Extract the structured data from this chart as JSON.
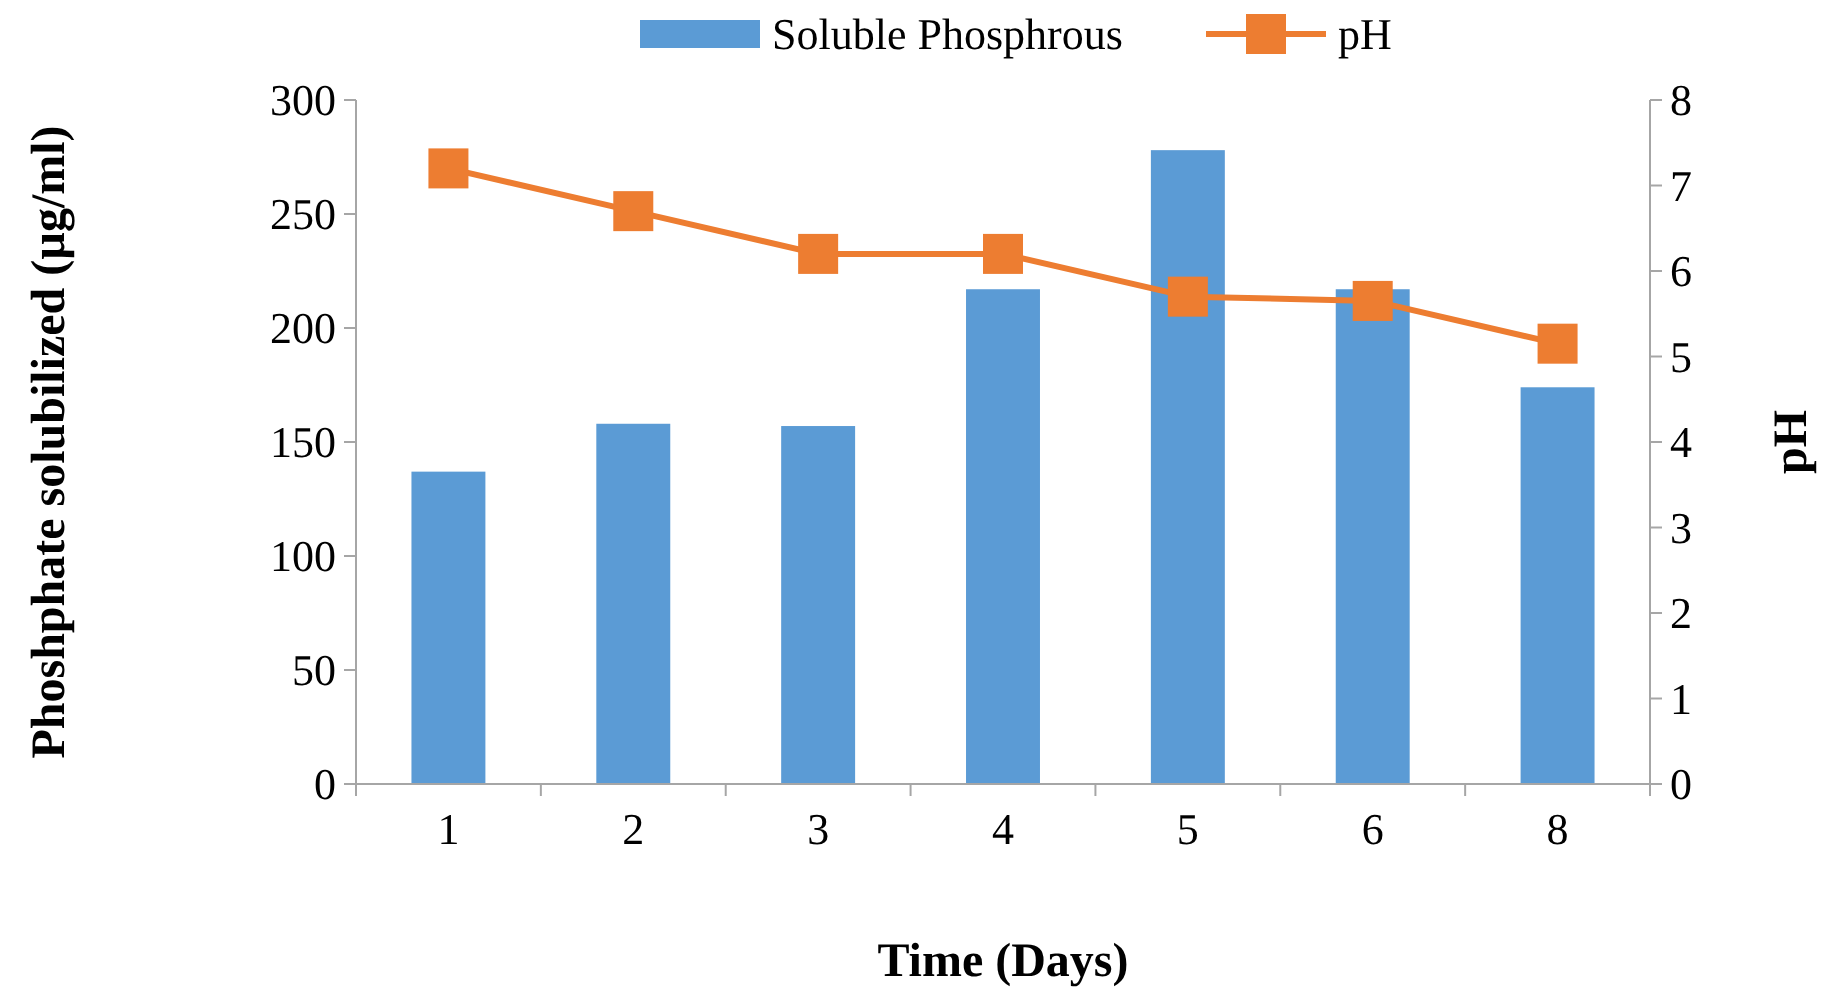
{
  "chart_data": {
    "type": "bar",
    "xlabel": "Time (Days)",
    "ylabel": "Phoshphate solubilized (µg/ml)",
    "y2label": "pH",
    "categories": [
      "1",
      "2",
      "3",
      "4",
      "5",
      "6",
      "8"
    ],
    "series": [
      {
        "name": "Soluble Phosphrous",
        "color": "#5b9bd5",
        "values": [
          137,
          158,
          157,
          217,
          278,
          217,
          174
        ]
      },
      {
        "name": "pH",
        "type": "line",
        "axis": "y2",
        "color": "#ed7d31",
        "marker": "square",
        "values": [
          7.2,
          6.7,
          6.2,
          6.2,
          5.7,
          5.65,
          5.15
        ]
      }
    ],
    "ylim": [
      0,
      300
    ],
    "yticks": [
      0,
      50,
      100,
      150,
      200,
      250,
      300
    ],
    "y2lim": [
      0,
      8
    ],
    "y2ticks": [
      0,
      1,
      2,
      3,
      4,
      5,
      6,
      7,
      8
    ],
    "legend": "top",
    "grid": false
  }
}
